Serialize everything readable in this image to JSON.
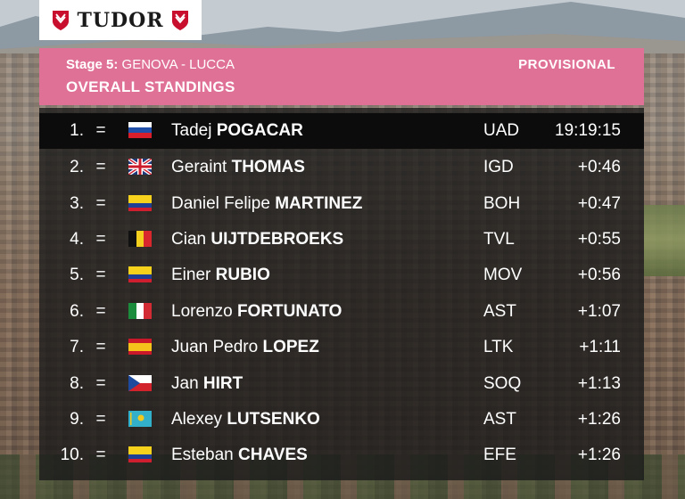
{
  "brand": {
    "logo_text": "TUDOR"
  },
  "header": {
    "stage_label": "Stage 5:",
    "stage_route": "GENOVA - LUCCA",
    "status": "PROVISIONAL",
    "title": "OVERALL STANDINGS"
  },
  "standings": [
    {
      "rank": "1.",
      "change": "=",
      "flag_icon": "slovenia-flag-icon",
      "first": "Tadej",
      "last": "POGACAR",
      "team": "UAD",
      "time": "19:19:15"
    },
    {
      "rank": "2.",
      "change": "=",
      "flag_icon": "great-britain-flag-icon",
      "first": "Geraint",
      "last": "THOMAS",
      "team": "IGD",
      "time": "+0:46"
    },
    {
      "rank": "3.",
      "change": "=",
      "flag_icon": "colombia-flag-icon",
      "first": "Daniel Felipe",
      "last": "MARTINEZ",
      "team": "BOH",
      "time": "+0:47"
    },
    {
      "rank": "4.",
      "change": "=",
      "flag_icon": "belgium-flag-icon",
      "first": "Cian",
      "last": "UIJTDEBROEKS",
      "team": "TVL",
      "time": "+0:55"
    },
    {
      "rank": "5.",
      "change": "=",
      "flag_icon": "colombia-flag-icon",
      "first": "Einer",
      "last": "RUBIO",
      "team": "MOV",
      "time": "+0:56"
    },
    {
      "rank": "6.",
      "change": "=",
      "flag_icon": "italy-flag-icon",
      "first": "Lorenzo",
      "last": "FORTUNATO",
      "team": "AST",
      "time": "+1:07"
    },
    {
      "rank": "7.",
      "change": "=",
      "flag_icon": "spain-flag-icon",
      "first": "Juan Pedro",
      "last": "LOPEZ",
      "team": "LTK",
      "time": "+1:11"
    },
    {
      "rank": "8.",
      "change": "=",
      "flag_icon": "czech-flag-icon",
      "first": "Jan",
      "last": "HIRT",
      "team": "SOQ",
      "time": "+1:13"
    },
    {
      "rank": "9.",
      "change": "=",
      "flag_icon": "kazakhstan-flag-icon",
      "first": "Alexey",
      "last": "LUTSENKO",
      "team": "AST",
      "time": "+1:26"
    },
    {
      "rank": "10.",
      "change": "=",
      "flag_icon": "colombia-flag-icon",
      "first": "Esteban",
      "last": "CHAVES",
      "team": "EFE",
      "time": "+1:26"
    }
  ],
  "colors": {
    "header_pink": "#e07196",
    "leader_row": "#0c0c0c",
    "table_bg": "#1a1a1a",
    "tudor_red": "#c8102e"
  }
}
